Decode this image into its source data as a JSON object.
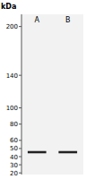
{
  "chart_data": {
    "type": "blot",
    "y_label": "kDa",
    "categories": [
      "A",
      "B"
    ],
    "values": [
      45.5,
      45.5
    ],
    "band_height": 2.8,
    "color": "#222222",
    "ylim": [
      18,
      215
    ],
    "yticks": [
      200,
      140,
      100,
      80,
      60,
      50,
      40,
      30,
      20
    ]
  }
}
